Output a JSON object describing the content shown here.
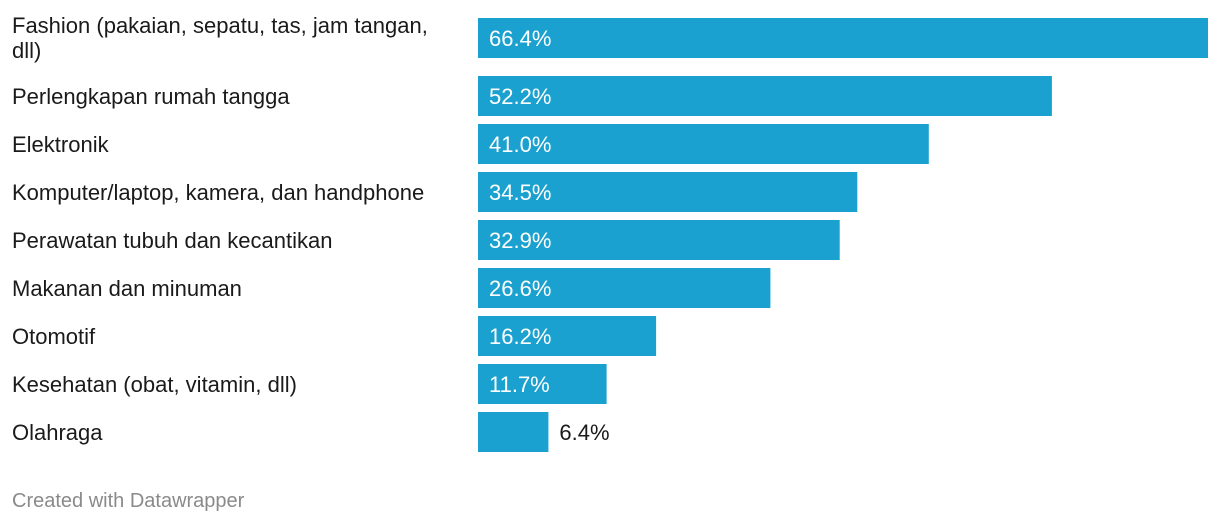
{
  "chart_data": {
    "type": "bar",
    "orientation": "horizontal",
    "categories": [
      "Fashion (pakaian, sepatu, tas, jam tangan, dll)",
      "Perlengkapan rumah tangga",
      "Elektronik",
      "Komputer/laptop, kamera, dan handphone",
      "Perawatan tubuh dan kecantikan",
      "Makanan dan minuman",
      "Otomotif",
      "Kesehatan (obat, vitamin, dll)",
      "Olahraga"
    ],
    "values": [
      66.4,
      52.2,
      41.0,
      34.5,
      32.9,
      26.6,
      16.2,
      11.7,
      6.4
    ],
    "value_labels": [
      "66.4%",
      "52.2%",
      "41.0%",
      "34.5%",
      "32.9%",
      "26.6%",
      "16.2%",
      "11.7%",
      "6.4%"
    ],
    "label_lines": [
      [
        "Fashion (pakaian, sepatu, tas, jam tangan,",
        "dll)"
      ],
      [
        "Perlengkapan rumah tangga"
      ],
      [
        "Elektronik"
      ],
      [
        "Komputer/laptop, kamera, dan handphone"
      ],
      [
        "Perawatan tubuh dan kecantikan"
      ],
      [
        "Makanan dan minuman"
      ],
      [
        "Otomotif"
      ],
      [
        "Kesehatan (obat, vitamin, dll)"
      ],
      [
        "Olahraga"
      ]
    ],
    "unit": "%",
    "xlim": [
      0,
      66.4
    ],
    "grid": false,
    "bar_color": "#1aa1cf",
    "value_label_inside_color": "#ffffff",
    "value_label_outside_color": "#1a1a1a"
  },
  "footer": {
    "credit": "Created with Datawrapper"
  }
}
